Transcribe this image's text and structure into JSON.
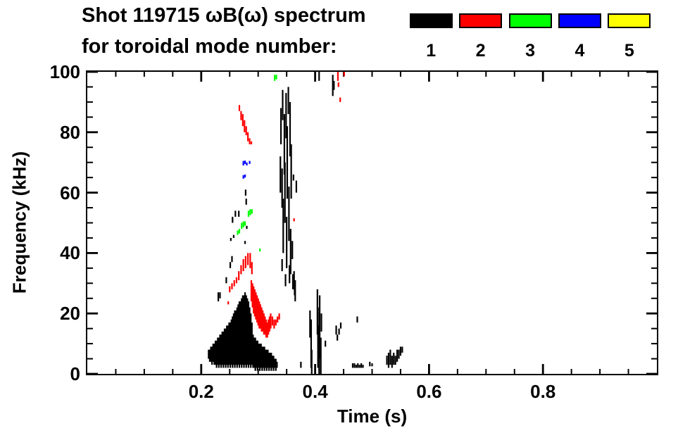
{
  "title_line1": "Shot 119715 ωB(ω) spectrum",
  "title_line2": "for toroidal mode number:",
  "legend": {
    "entries": [
      {
        "label": "1",
        "color": "#000000"
      },
      {
        "label": "2",
        "color": "#ff0000"
      },
      {
        "label": "3",
        "color": "#00ff00"
      },
      {
        "label": "4",
        "color": "#0000ff"
      },
      {
        "label": "5",
        "color": "#ffff00"
      }
    ]
  },
  "chart_data": {
    "type": "scatter",
    "title": "Shot 119715 ωB(ω) spectrum for toroidal mode number: 1 2 3 4 5",
    "xlabel": "Time (s)",
    "ylabel": "Frequency (kHz)",
    "xlim": [
      0,
      1.0
    ],
    "ylim": [
      0,
      100
    ],
    "grid": false,
    "x_major_ticks": [
      0.2,
      0.4,
      0.6,
      0.8
    ],
    "x_major_labels": [
      "0.2",
      "0.4",
      "0.6",
      "0.8"
    ],
    "x_minor_step": 0.05,
    "y_major_ticks": [
      0,
      20,
      40,
      60,
      80,
      100
    ],
    "y_major_labels": [
      "0",
      "20",
      "40",
      "60",
      "80",
      "100"
    ],
    "y_minor_step": 5,
    "legend_position": "top-right",
    "series_note": "strokes are short vertical spectrogram marks [time_s, freq_lo_kHz, freq_hi_kHz]",
    "series": [
      {
        "name": "mode 1",
        "color": "#000000",
        "strokes": [
          [
            0.213,
            5,
            8
          ],
          [
            0.215,
            4,
            8
          ],
          [
            0.217,
            4,
            9
          ],
          [
            0.219,
            3,
            9
          ],
          [
            0.221,
            4,
            10
          ],
          [
            0.223,
            3,
            10
          ],
          [
            0.225,
            3,
            11
          ],
          [
            0.227,
            2,
            11
          ],
          [
            0.229,
            3,
            12
          ],
          [
            0.231,
            2,
            12
          ],
          [
            0.233,
            3,
            13
          ],
          [
            0.235,
            2,
            13
          ],
          [
            0.237,
            3,
            14
          ],
          [
            0.239,
            2,
            14
          ],
          [
            0.241,
            3,
            15
          ],
          [
            0.243,
            2,
            15
          ],
          [
            0.245,
            3,
            16
          ],
          [
            0.247,
            2,
            16
          ],
          [
            0.249,
            3,
            17
          ],
          [
            0.251,
            2,
            17
          ],
          [
            0.253,
            3,
            18
          ],
          [
            0.255,
            2,
            19
          ],
          [
            0.257,
            3,
            20
          ],
          [
            0.259,
            2,
            21
          ],
          [
            0.261,
            3,
            21
          ],
          [
            0.263,
            2,
            22
          ],
          [
            0.265,
            3,
            23
          ],
          [
            0.267,
            2,
            24
          ],
          [
            0.269,
            3,
            24
          ],
          [
            0.271,
            2,
            25
          ],
          [
            0.273,
            3,
            26
          ],
          [
            0.275,
            2,
            26
          ],
          [
            0.277,
            3,
            27
          ],
          [
            0.279,
            2,
            26
          ],
          [
            0.281,
            3,
            25
          ],
          [
            0.283,
            2,
            24
          ],
          [
            0.285,
            3,
            22
          ],
          [
            0.287,
            2,
            20
          ],
          [
            0.289,
            3,
            17
          ],
          [
            0.291,
            2,
            13
          ],
          [
            0.293,
            2,
            12
          ],
          [
            0.295,
            1,
            12
          ],
          [
            0.297,
            2,
            11
          ],
          [
            0.299,
            1,
            11
          ],
          [
            0.301,
            2,
            10
          ],
          [
            0.303,
            1,
            10
          ],
          [
            0.305,
            2,
            10
          ],
          [
            0.307,
            1,
            9
          ],
          [
            0.309,
            2,
            9
          ],
          [
            0.311,
            1,
            9
          ],
          [
            0.313,
            2,
            8
          ],
          [
            0.315,
            1,
            8
          ],
          [
            0.317,
            2,
            8
          ],
          [
            0.319,
            1,
            7
          ],
          [
            0.321,
            2,
            7
          ],
          [
            0.323,
            1,
            7
          ],
          [
            0.325,
            2,
            6
          ],
          [
            0.327,
            1,
            6
          ],
          [
            0.329,
            2,
            5
          ],
          [
            0.331,
            1,
            5
          ],
          [
            0.333,
            2,
            4
          ],
          [
            0.23,
            24,
            27
          ],
          [
            0.233,
            25,
            27
          ],
          [
            0.244,
            30,
            32
          ],
          [
            0.251,
            35,
            37
          ],
          [
            0.254,
            37,
            39
          ],
          [
            0.252,
            44,
            45
          ],
          [
            0.255,
            50,
            52
          ],
          [
            0.26,
            52,
            54
          ],
          [
            0.266,
            52,
            54
          ],
          [
            0.257,
            45,
            46
          ],
          [
            0.277,
            43,
            44
          ],
          [
            0.28,
            48,
            49
          ],
          [
            0.279,
            56,
            58
          ],
          [
            0.278,
            59,
            61
          ],
          [
            0.339,
            60,
            72
          ],
          [
            0.34,
            76,
            88
          ],
          [
            0.342,
            55,
            68
          ],
          [
            0.343,
            84,
            94
          ],
          [
            0.344,
            40,
            58
          ],
          [
            0.346,
            66,
            86
          ],
          [
            0.347,
            50,
            70
          ],
          [
            0.349,
            78,
            93
          ],
          [
            0.35,
            35,
            52
          ],
          [
            0.351,
            58,
            82
          ],
          [
            0.353,
            86,
            95
          ],
          [
            0.354,
            44,
            62
          ],
          [
            0.356,
            72,
            90
          ],
          [
            0.357,
            33,
            48
          ],
          [
            0.358,
            58,
            76
          ],
          [
            0.342,
            34,
            38
          ],
          [
            0.348,
            29,
            33
          ],
          [
            0.355,
            30,
            36
          ],
          [
            0.36,
            38,
            44
          ],
          [
            0.361,
            28,
            33
          ],
          [
            0.362,
            64,
            66
          ],
          [
            0.363,
            28,
            34
          ],
          [
            0.365,
            24,
            31
          ],
          [
            0.367,
            60,
            64
          ],
          [
            0.364,
            26,
            30
          ],
          [
            0.391,
            12,
            21
          ],
          [
            0.393,
            2,
            18
          ],
          [
            0.394,
            0,
            8
          ],
          [
            0.404,
            13,
            28
          ],
          [
            0.405,
            2,
            22
          ],
          [
            0.407,
            0,
            16
          ],
          [
            0.408,
            5,
            26
          ],
          [
            0.41,
            0,
            12
          ],
          [
            0.411,
            14,
            20
          ],
          [
            0.407,
            97,
            100
          ],
          [
            0.431,
            92,
            99
          ],
          [
            0.433,
            94,
            97
          ],
          [
            0.375,
            2,
            4
          ],
          [
            0.418,
            9,
            11
          ],
          [
            0.437,
            13,
            16
          ],
          [
            0.439,
            11,
            13
          ],
          [
            0.442,
            13,
            15
          ],
          [
            0.445,
            15,
            17
          ],
          [
            0.474,
            17,
            19
          ],
          [
            0.466,
            2,
            3.5
          ],
          [
            0.469,
            2,
            3.5
          ],
          [
            0.472,
            2,
            3
          ],
          [
            0.475,
            2,
            3.5
          ],
          [
            0.478,
            2,
            3
          ],
          [
            0.481,
            2,
            3.5
          ],
          [
            0.484,
            2,
            3
          ],
          [
            0.496,
            2.5,
            4
          ],
          [
            0.5,
            2.5,
            3.5
          ],
          [
            0.526,
            3,
            6
          ],
          [
            0.529,
            2,
            7
          ],
          [
            0.532,
            3,
            8
          ],
          [
            0.535,
            2,
            6
          ],
          [
            0.538,
            3,
            7
          ],
          [
            0.541,
            3,
            6
          ],
          [
            0.544,
            4,
            8
          ],
          [
            0.547,
            5,
            8
          ],
          [
            0.55,
            6,
            9
          ],
          [
            0.553,
            7,
            9
          ]
        ]
      },
      {
        "name": "mode 2",
        "color": "#ff0000",
        "strokes": [
          [
            0.2475,
            23,
            24
          ],
          [
            0.25,
            27,
            29
          ],
          [
            0.254,
            28,
            30
          ],
          [
            0.258,
            29,
            31
          ],
          [
            0.262,
            30,
            32
          ],
          [
            0.266,
            31,
            34
          ],
          [
            0.27,
            33,
            36
          ],
          [
            0.274,
            34,
            38
          ],
          [
            0.278,
            35,
            39
          ],
          [
            0.282,
            36,
            40
          ],
          [
            0.286,
            35,
            40
          ],
          [
            0.289,
            33,
            37
          ],
          [
            0.288,
            24,
            31
          ],
          [
            0.29,
            22,
            30
          ],
          [
            0.292,
            20,
            29
          ],
          [
            0.294,
            19,
            28
          ],
          [
            0.296,
            18,
            27
          ],
          [
            0.298,
            17,
            26
          ],
          [
            0.3,
            16,
            25
          ],
          [
            0.302,
            15,
            24
          ],
          [
            0.304,
            15,
            23
          ],
          [
            0.306,
            14,
            22
          ],
          [
            0.308,
            14,
            21
          ],
          [
            0.31,
            13,
            20
          ],
          [
            0.312,
            13,
            19
          ],
          [
            0.314,
            12,
            18
          ],
          [
            0.316,
            12,
            17
          ],
          [
            0.318,
            13,
            18
          ],
          [
            0.32,
            14,
            19
          ],
          [
            0.322,
            15,
            20
          ],
          [
            0.325,
            16,
            19
          ],
          [
            0.328,
            15,
            18
          ],
          [
            0.331,
            16,
            18
          ],
          [
            0.334,
            17,
            19
          ],
          [
            0.337,
            18,
            20
          ],
          [
            0.267,
            87,
            89
          ],
          [
            0.27,
            84,
            87
          ],
          [
            0.273,
            82,
            86
          ],
          [
            0.276,
            80,
            84
          ],
          [
            0.279,
            79,
            82
          ],
          [
            0.282,
            77,
            80
          ],
          [
            0.285,
            76,
            78
          ],
          [
            0.288,
            76,
            77
          ],
          [
            0.363,
            50.5,
            51.5
          ],
          [
            0.44,
            97,
            100
          ],
          [
            0.441,
            95,
            96.5
          ],
          [
            0.444,
            90,
            91.5
          ],
          [
            0.451,
            98.5,
            100
          ]
        ]
      },
      {
        "name": "mode 3",
        "color": "#00ff00",
        "strokes": [
          [
            0.264,
            46,
            47.5
          ],
          [
            0.267,
            46.5,
            48
          ],
          [
            0.271,
            48,
            50
          ],
          [
            0.274,
            48.5,
            50.5
          ],
          [
            0.277,
            49,
            50.5
          ],
          [
            0.283,
            52,
            54
          ],
          [
            0.286,
            52.5,
            54.5
          ],
          [
            0.289,
            53,
            54.5
          ],
          [
            0.303,
            40.5,
            41.5
          ],
          [
            0.329,
            97,
            99
          ],
          [
            0.332,
            97.5,
            99
          ]
        ]
      },
      {
        "name": "mode 4",
        "color": "#0000ff",
        "strokes": [
          [
            0.274,
            69,
            70.5
          ],
          [
            0.277,
            69.5,
            70.6
          ],
          [
            0.28,
            69,
            70
          ],
          [
            0.285,
            69.5,
            70.5
          ],
          [
            0.274,
            64.6,
            65.8
          ],
          [
            0.277,
            65,
            66
          ]
        ]
      },
      {
        "name": "mode 5",
        "color": "#ffff00",
        "strokes": []
      }
    ]
  }
}
